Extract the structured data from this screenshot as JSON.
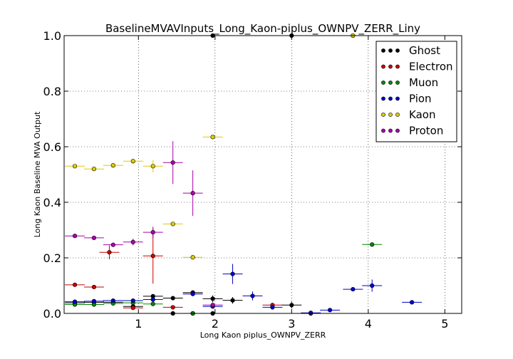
{
  "chart_data": {
    "type": "scatter",
    "title": "BaselineMVAVInputs_Long_Kaon-piplus_OWNPV_ZERR_Liny",
    "xlabel": "Long Kaon piplus_OWNPV_ZERR",
    "ylabel": "Long Kaon Baseline MVA Output",
    "xlim": [
      0.03,
      5.22
    ],
    "ylim": [
      0.0,
      1.0
    ],
    "xticks": [
      "1",
      "2",
      "3",
      "4",
      "5"
    ],
    "xtick_values": [
      1,
      2,
      3,
      4,
      5
    ],
    "yticks": [
      "0.0",
      "0.2",
      "0.4",
      "0.6",
      "0.8",
      "1.0"
    ],
    "ytick_values": [
      0.0,
      0.2,
      0.4,
      0.6,
      0.8,
      1.0
    ],
    "grid": true,
    "legend_position": "top-right",
    "series": [
      {
        "name": "Ghost",
        "color": "#000000",
        "xerr": 0.13,
        "points": [
          [
            0.17,
            0.038,
            0.004
          ],
          [
            0.42,
            0.04,
            0.004
          ],
          [
            0.67,
            0.04,
            0.004
          ],
          [
            0.93,
            0.025,
            0.004
          ],
          [
            1.19,
            0.062,
            0.006
          ],
          [
            1.45,
            0.055,
            0.006
          ],
          [
            1.71,
            0.075,
            0.008
          ],
          [
            1.97,
            0.053,
            0.012
          ],
          [
            2.23,
            0.047,
            0.012
          ],
          [
            3.0,
            0.03,
            0.012
          ],
          [
            1.45,
            0.0,
            0.0
          ],
          [
            1.71,
            0.0,
            0.0
          ],
          [
            1.97,
            0.0,
            0.0
          ],
          [
            1.97,
            1.0,
            0.0
          ],
          [
            3.25,
            0.0,
            0.0
          ],
          [
            3.0,
            1.0,
            0.0
          ]
        ]
      },
      {
        "name": "Electron",
        "color": "#cc0000",
        "xerr": 0.13,
        "points": [
          [
            0.17,
            0.103,
            0.004
          ],
          [
            0.42,
            0.095,
            0.004
          ],
          [
            0.62,
            0.22,
            0.025
          ],
          [
            0.93,
            0.02,
            0.004
          ],
          [
            1.19,
            0.207,
            0.1
          ],
          [
            1.45,
            0.022,
            0.004
          ],
          [
            2.75,
            0.03,
            0.008
          ]
        ]
      },
      {
        "name": "Muon",
        "color": "#008800",
        "xerr": 0.13,
        "points": [
          [
            0.17,
            0.032,
            0.004
          ],
          [
            0.42,
            0.032,
            0.004
          ],
          [
            0.67,
            0.036,
            0.004
          ],
          [
            0.93,
            0.038,
            0.004
          ],
          [
            1.19,
            0.034,
            0.004
          ],
          [
            1.71,
            0.0,
            0.0
          ],
          [
            4.05,
            0.248,
            0.004
          ]
        ]
      },
      {
        "name": "Pion",
        "color": "#0000cc",
        "xerr": 0.13,
        "points": [
          [
            0.17,
            0.042,
            0.004
          ],
          [
            0.42,
            0.044,
            0.004
          ],
          [
            0.67,
            0.046,
            0.004
          ],
          [
            0.93,
            0.046,
            0.004
          ],
          [
            1.19,
            0.05,
            0.004
          ],
          [
            1.71,
            0.07,
            0.008
          ],
          [
            1.97,
            0.025,
            0.006
          ],
          [
            2.23,
            0.142,
            0.036
          ],
          [
            2.49,
            0.063,
            0.016
          ],
          [
            2.75,
            0.022,
            0.008
          ],
          [
            3.25,
            0.002,
            0.002
          ],
          [
            3.5,
            0.012,
            0.004
          ],
          [
            3.8,
            0.087,
            0.004
          ],
          [
            4.05,
            0.1,
            0.022
          ],
          [
            4.57,
            0.04,
            0.004
          ]
        ]
      },
      {
        "name": "Kaon",
        "color": "#ddcc00",
        "xerr": 0.13,
        "points": [
          [
            0.17,
            0.53,
            0.004
          ],
          [
            0.42,
            0.52,
            0.004
          ],
          [
            0.67,
            0.533,
            0.004
          ],
          [
            0.93,
            0.548,
            0.006
          ],
          [
            1.19,
            0.53,
            0.022
          ],
          [
            1.45,
            0.322,
            0.008
          ],
          [
            1.71,
            0.202,
            0.004
          ],
          [
            1.97,
            0.635,
            0.004
          ],
          [
            3.8,
            1.0,
            0.0
          ]
        ]
      },
      {
        "name": "Proton",
        "color": "#aa00aa",
        "xerr": 0.13,
        "points": [
          [
            0.17,
            0.279,
            0.004
          ],
          [
            0.42,
            0.272,
            0.004
          ],
          [
            0.67,
            0.247,
            0.004
          ],
          [
            0.93,
            0.257,
            0.012
          ],
          [
            1.19,
            0.292,
            0.02
          ],
          [
            1.45,
            0.543,
            0.077
          ],
          [
            1.71,
            0.433,
            0.082
          ],
          [
            1.97,
            0.03,
            0.01
          ]
        ]
      }
    ]
  }
}
